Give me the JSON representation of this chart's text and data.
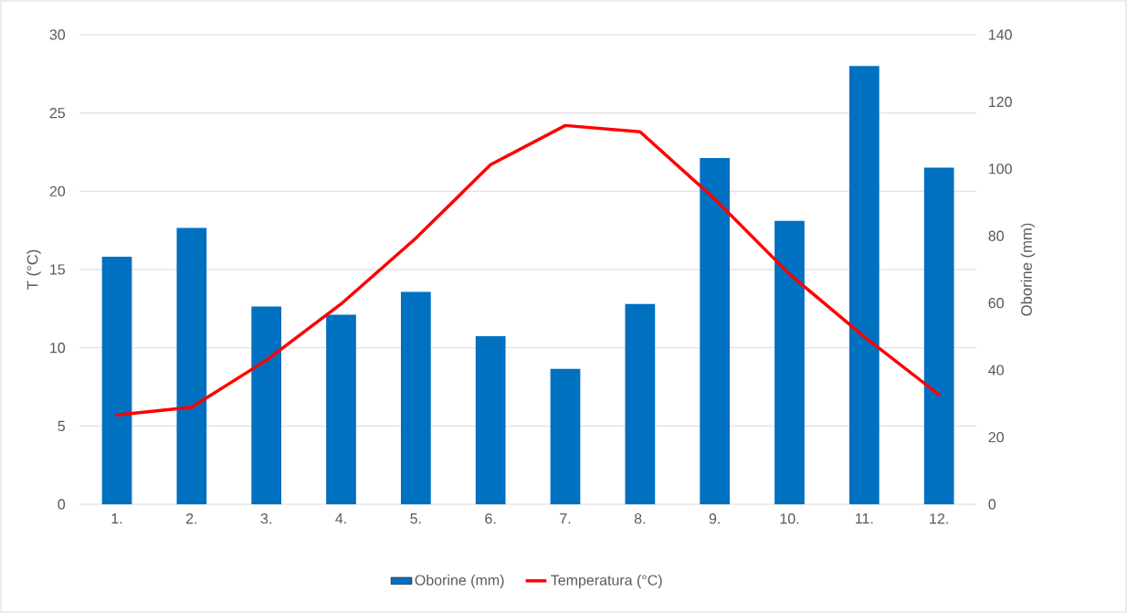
{
  "chart_data": {
    "type": "bar",
    "categories": [
      "1.",
      "2.",
      "3.",
      "4.",
      "5.",
      "6.",
      "7.",
      "8.",
      "9.",
      "10.",
      "11.",
      "12."
    ],
    "ylabel": "T (°C)",
    "y2label": "Oborine (mm)",
    "ylim": [
      0,
      30
    ],
    "yticks": [
      0,
      5,
      10,
      15,
      20,
      25,
      30
    ],
    "y2lim": [
      0,
      140
    ],
    "y2ticks": [
      0,
      20,
      40,
      60,
      80,
      100,
      120,
      140
    ],
    "grid": "y",
    "legend": "bottom",
    "series": [
      {
        "name": "Oborine (mm)",
        "axis": "y2",
        "color": "#0070c0",
        "values": [
          73.8,
          82.4,
          59.0,
          56.5,
          63.3,
          50.1,
          40.4,
          59.7,
          103.2,
          84.5,
          130.7,
          100.4
        ]
      },
      {
        "name": "Temperatura (°C)",
        "type": "line",
        "color": "#ff0000",
        "values": [
          5.7,
          6.2,
          9.2,
          12.8,
          17.0,
          21.7,
          24.2,
          23.8,
          19.5,
          14.7,
          10.7,
          7.0
        ]
      }
    ]
  }
}
